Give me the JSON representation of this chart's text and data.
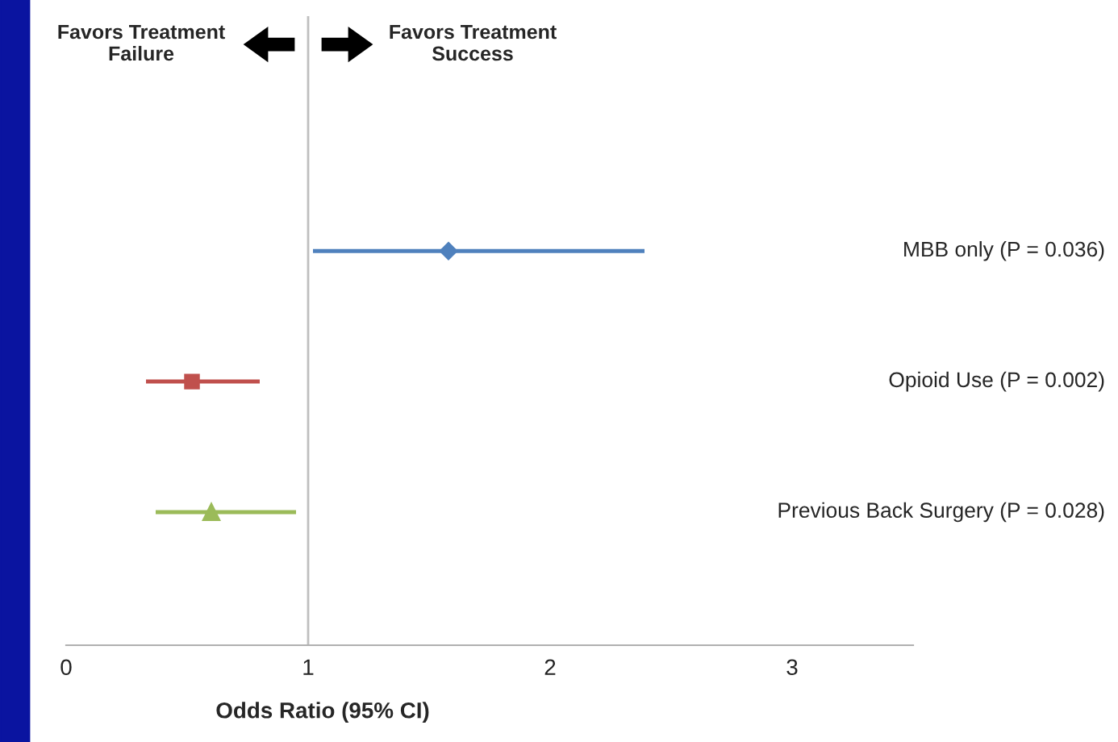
{
  "chart_data": {
    "type": "scatter",
    "orientation": "horizontal",
    "categories": [
      "MBB only (P = 0.036)",
      "Opioid Use (P = 0.002)",
      "Previous Back Surgery (P = 0.028)"
    ],
    "series": [
      {
        "color": "#4f81bd",
        "marker": "diamond",
        "values": [
          1.58,
          null,
          null
        ],
        "errors": [
          [
            1.02,
            2.39
          ],
          null,
          null
        ]
      },
      {
        "color": "#c0504d",
        "marker": "square",
        "values": [
          null,
          0.52,
          null
        ],
        "errors": [
          null,
          [
            0.33,
            0.8
          ],
          null
        ]
      },
      {
        "color": "#9bbb59",
        "marker": "triangle",
        "values": [
          null,
          null,
          0.6
        ],
        "errors": [
          null,
          null,
          [
            0.37,
            0.95
          ]
        ]
      }
    ],
    "xlim": [
      0,
      3.5
    ],
    "xticks": [
      0,
      1,
      2,
      3
    ],
    "xlabel": "Odds Ratio (95% CI)",
    "ref_lines": [
      {
        "axis": "x",
        "value": 1,
        "color": "#bfbfbf"
      }
    ],
    "annotations": [
      "Favors Treatment\nFailure",
      "Favors Treatment\nSuccess"
    ],
    "grid": false
  }
}
